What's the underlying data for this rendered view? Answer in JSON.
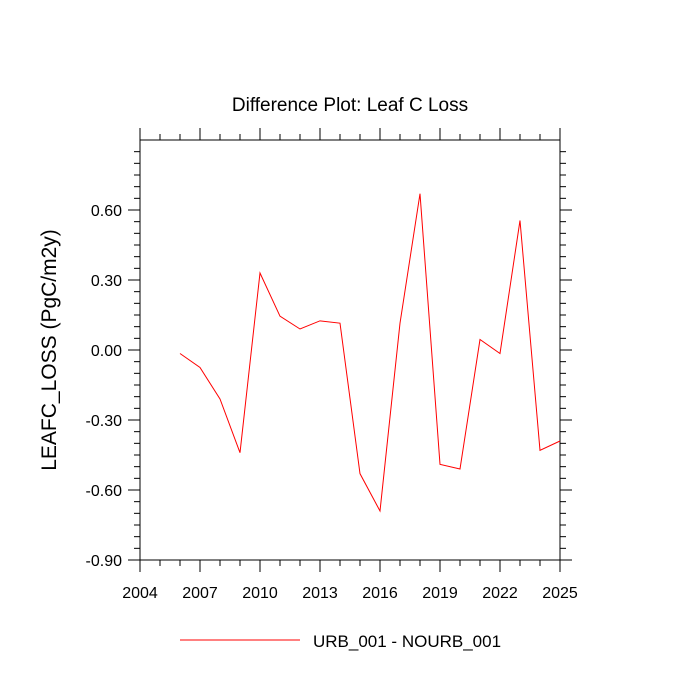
{
  "chart_data": {
    "type": "line",
    "title": "Difference Plot: Leaf C Loss",
    "xlabel": "",
    "ylabel": "LEAFC_LOSS  (PgC/m2y)",
    "xlim": [
      2004,
      2025
    ],
    "ylim": [
      -0.9,
      0.9
    ],
    "x_ticks": [
      2004,
      2007,
      2010,
      2013,
      2016,
      2019,
      2022,
      2025
    ],
    "x_tick_labels": [
      "2004",
      "2007",
      "2010",
      "2013",
      "2016",
      "2019",
      "2022",
      "2025"
    ],
    "y_ticks": [
      -0.9,
      -0.6,
      -0.3,
      0.0,
      0.3,
      0.6
    ],
    "y_tick_labels": [
      "-0.90",
      "-0.60",
      "-0.30",
      "0.00",
      "0.30",
      "0.60"
    ],
    "grid": false,
    "legend_position": "bottom-center",
    "x": [
      2006,
      2007,
      2008,
      2009,
      2010,
      2011,
      2012,
      2013,
      2014,
      2015,
      2016,
      2017,
      2018,
      2019,
      2020,
      2021,
      2022,
      2023,
      2024,
      2025
    ],
    "series": [
      {
        "name": "URB_001 - NOURB_001",
        "color": "#ff0000",
        "values": [
          -0.015,
          -0.075,
          -0.21,
          -0.44,
          0.33,
          0.145,
          0.09,
          0.125,
          0.115,
          -0.53,
          -0.69,
          0.115,
          0.67,
          -0.49,
          -0.51,
          0.045,
          -0.015,
          0.555,
          -0.43,
          -0.39
        ]
      }
    ]
  }
}
